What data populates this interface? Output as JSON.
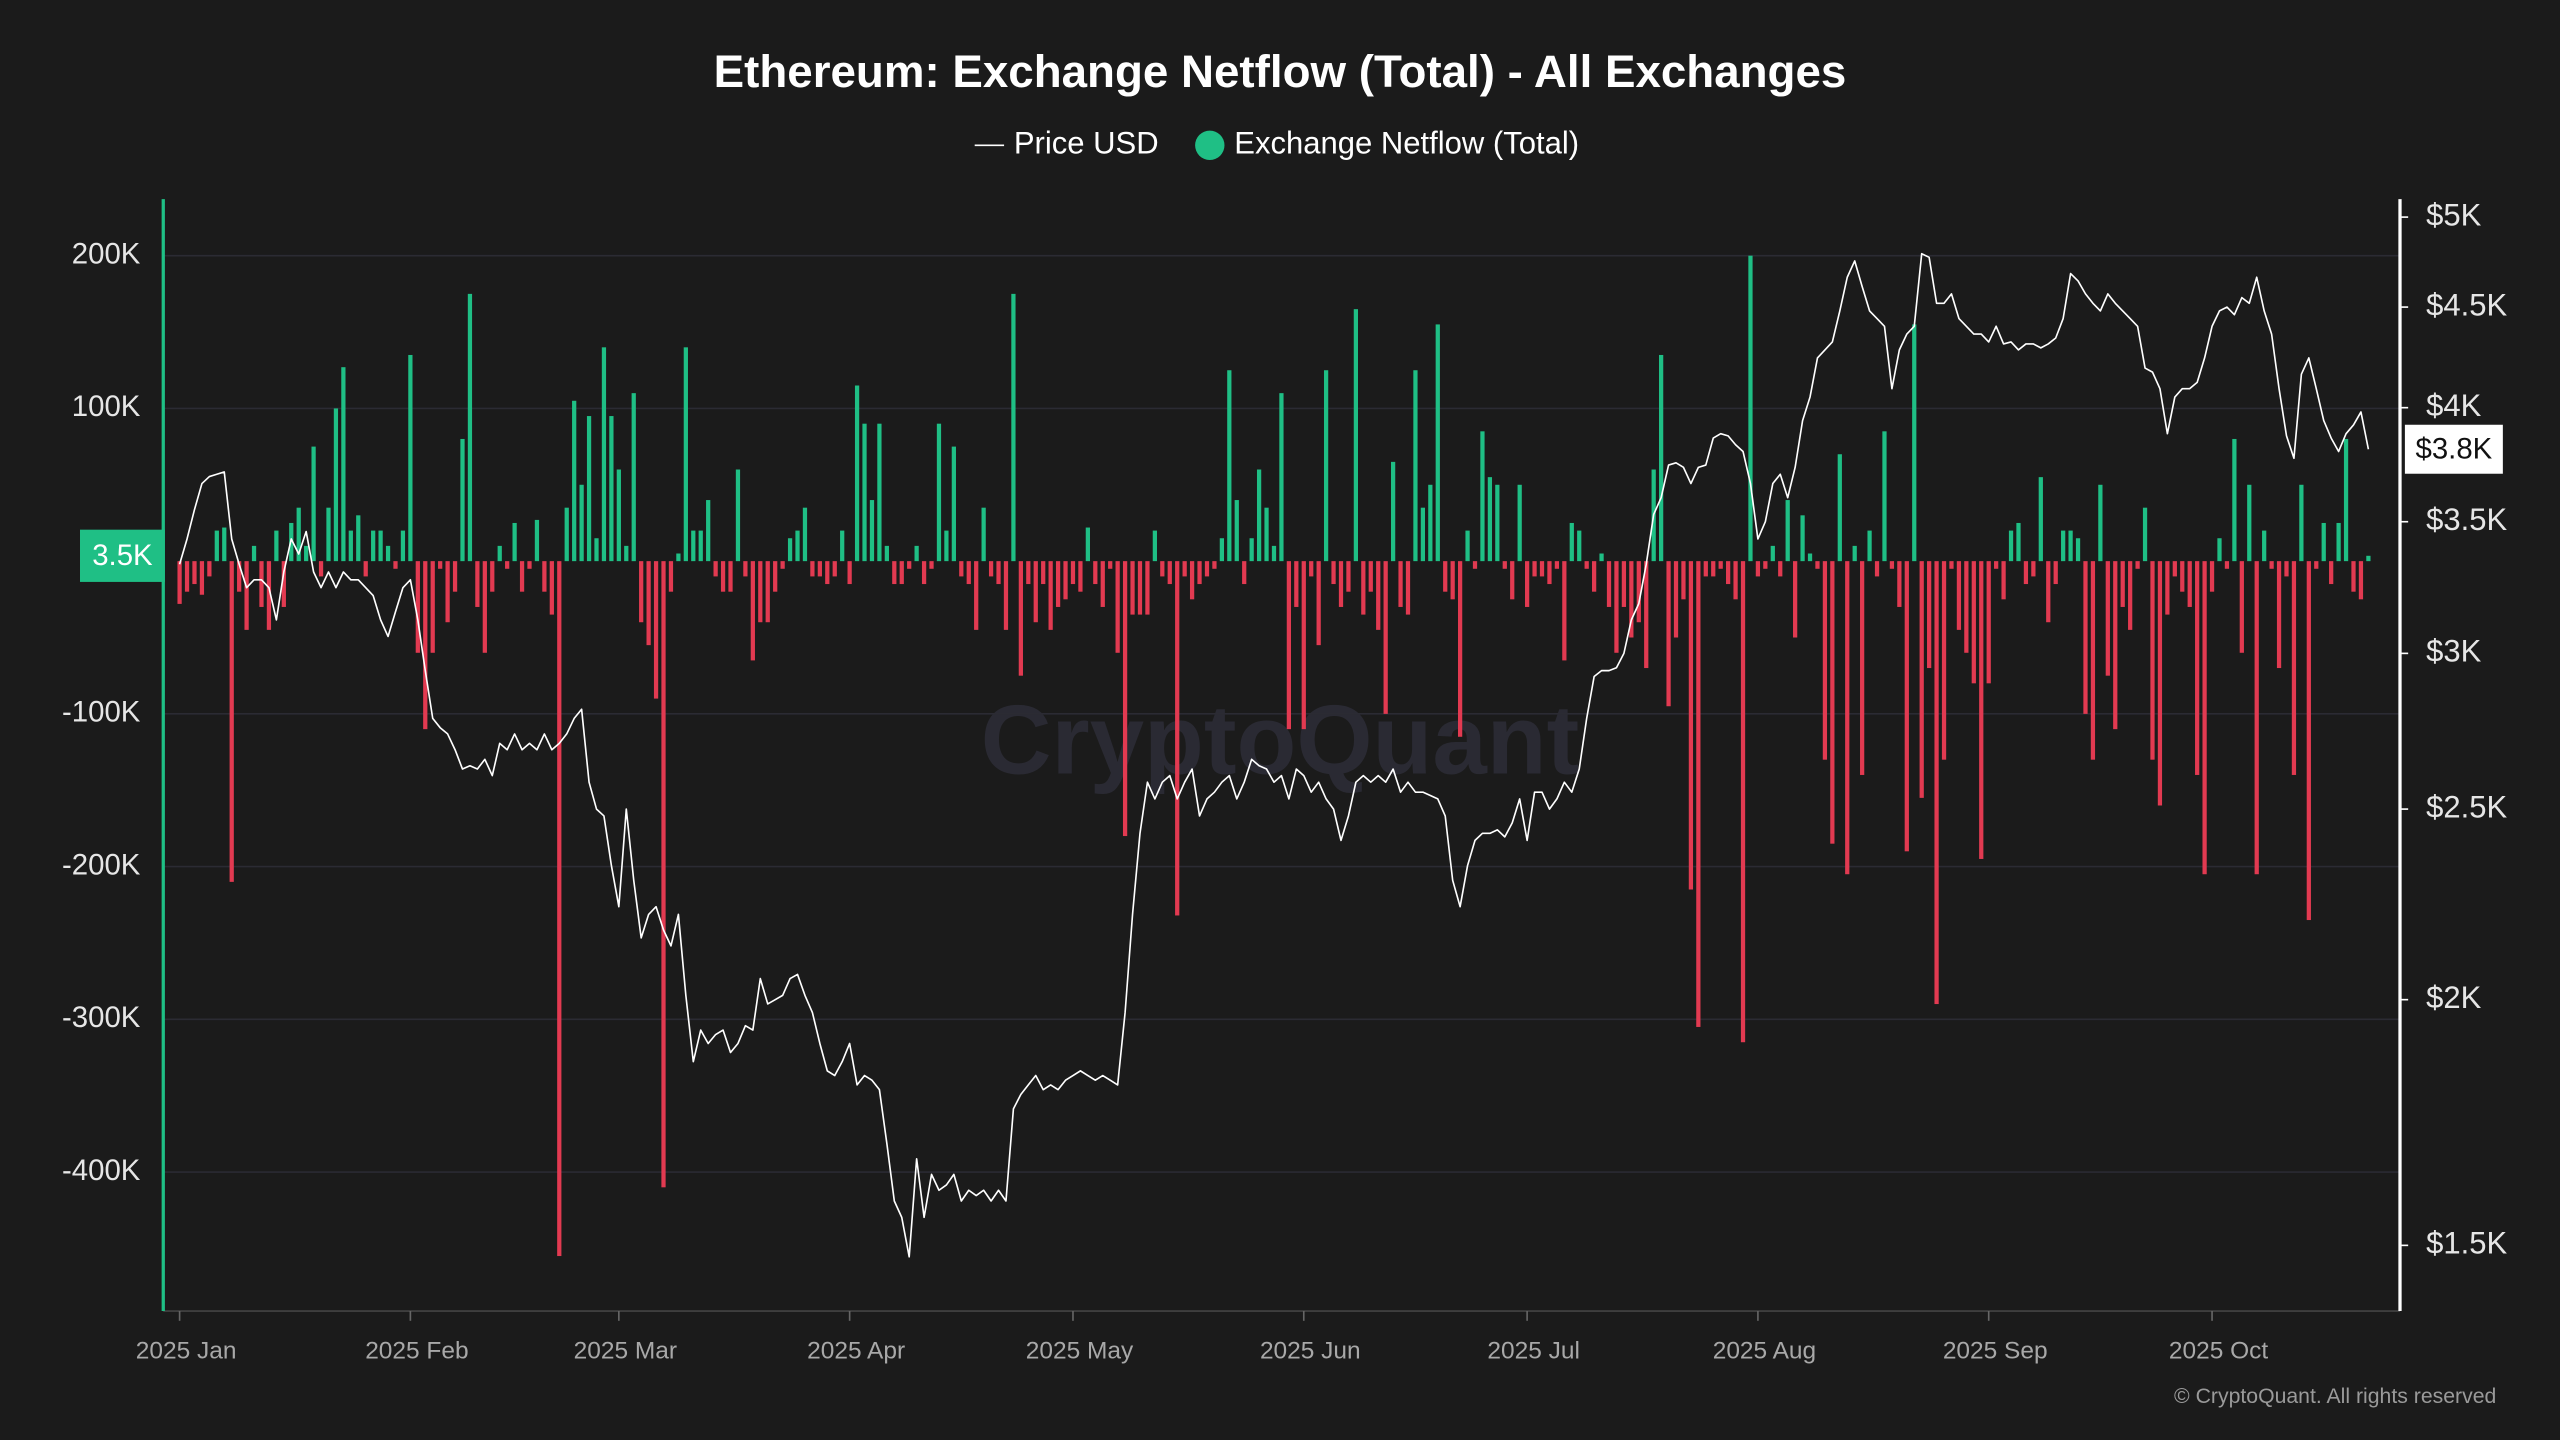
{
  "chart_data": {
    "type": "bar",
    "title": "Ethereum: Exchange Netflow (Total) - All Exchanges",
    "watermark": "CryptoQuant",
    "copyright": "© CryptoQuant. All rights reserved",
    "legend": "top",
    "grid": true,
    "categories": [
      "2025 Jan",
      null,
      null,
      null,
      null,
      null,
      null,
      null,
      null,
      null,
      null,
      null,
      null,
      null,
      null,
      null,
      null,
      null,
      null,
      null,
      null,
      null,
      null,
      null,
      null,
      null,
      null,
      null,
      null,
      null,
      null,
      "2025 Feb",
      null,
      null,
      null,
      null,
      null,
      null,
      null,
      null,
      null,
      null,
      null,
      null,
      null,
      null,
      null,
      null,
      null,
      null,
      null,
      null,
      null,
      null,
      null,
      null,
      null,
      null,
      null,
      "2025 Mar",
      null,
      null,
      null,
      null,
      null,
      null,
      null,
      null,
      null,
      null,
      null,
      null,
      null,
      null,
      null,
      null,
      null,
      null,
      null,
      null,
      null,
      null,
      null,
      null,
      null,
      null,
      null,
      null,
      null,
      null,
      "2025 Apr",
      null,
      null,
      null,
      null,
      null,
      null,
      null,
      null,
      null,
      null,
      null,
      null,
      null,
      null,
      null,
      null,
      null,
      null,
      null,
      null,
      null,
      null,
      null,
      null,
      null,
      null,
      null,
      null,
      null,
      "2025 May",
      null,
      null,
      null,
      null,
      null,
      null,
      null,
      null,
      null,
      null,
      null,
      null,
      null,
      null,
      null,
      null,
      null,
      null,
      null,
      null,
      null,
      null,
      null,
      null,
      null,
      null,
      null,
      null,
      null,
      null,
      "2025 Jun",
      null,
      null,
      null,
      null,
      null,
      null,
      null,
      null,
      null,
      null,
      null,
      null,
      null,
      null,
      null,
      null,
      null,
      null,
      null,
      null,
      null,
      null,
      null,
      null,
      null,
      null,
      null,
      null,
      null,
      "2025 Jul",
      null,
      null,
      null,
      null,
      null,
      null,
      null,
      null,
      null,
      null,
      null,
      null,
      null,
      null,
      null,
      null,
      null,
      null,
      null,
      null,
      null,
      null,
      null,
      null,
      null,
      null,
      null,
      null,
      null,
      null,
      "2025 Aug",
      null,
      null,
      null,
      null,
      null,
      null,
      null,
      null,
      null,
      null,
      null,
      null,
      null,
      null,
      null,
      null,
      null,
      null,
      null,
      null,
      null,
      null,
      null,
      null,
      null,
      null,
      null,
      null,
      null,
      null,
      "2025 Sep",
      null,
      null,
      null,
      null,
      null,
      null,
      null,
      null,
      null,
      null,
      null,
      null,
      null,
      null,
      null,
      null,
      null,
      null,
      null,
      null,
      null,
      null,
      null,
      null,
      null,
      null,
      null,
      null,
      null,
      "2025 Oct",
      null,
      null,
      null,
      null,
      null,
      null,
      null,
      null,
      null,
      null,
      null,
      null,
      null,
      null,
      null,
      null,
      null,
      null,
      null,
      null,
      null
    ],
    "ylim": [
      -491000,
      237000
    ],
    "yticks": [
      {
        "value": -400000,
        "label": "-400K"
      },
      {
        "value": -300000,
        "label": "-300K"
      },
      {
        "value": -200000,
        "label": "-200K"
      },
      {
        "value": -100000,
        "label": "-100K"
      },
      {
        "value": 100000,
        "label": "100K"
      },
      {
        "value": 200000,
        "label": "200K"
      }
    ],
    "y2lim": [
      1389,
      5106
    ],
    "y2log": true,
    "y2ticks": [
      {
        "value": 1500,
        "label": "$1.5K"
      },
      {
        "value": 2000,
        "label": "$2K"
      },
      {
        "value": 2500,
        "label": "$2.5K"
      },
      {
        "value": 3000,
        "label": "$3K"
      },
      {
        "value": 3500,
        "label": "$3.5K"
      },
      {
        "value": 4000,
        "label": "$4K"
      },
      {
        "value": 4500,
        "label": "$4.5K"
      },
      {
        "value": 5000,
        "label": "$5K"
      }
    ],
    "series": [
      {
        "name": "Price USD",
        "type": "line",
        "axis": "y2",
        "color": "#ffffff",
        "last_label": "$3.8K",
        "values": [
          3330,
          3430,
          3550,
          3660,
          3690,
          3700,
          3710,
          3430,
          3330,
          3240,
          3270,
          3270,
          3240,
          3120,
          3300,
          3430,
          3370,
          3460,
          3300,
          3240,
          3300,
          3240,
          3300,
          3270,
          3270,
          3240,
          3210,
          3120,
          3060,
          3150,
          3240,
          3270,
          3120,
          2940,
          2780,
          2750,
          2730,
          2680,
          2620,
          2630,
          2620,
          2650,
          2600,
          2700,
          2680,
          2730,
          2680,
          2700,
          2680,
          2730,
          2680,
          2700,
          2730,
          2780,
          2810,
          2580,
          2500,
          2480,
          2340,
          2230,
          2500,
          2300,
          2150,
          2210,
          2230,
          2170,
          2130,
          2210,
          2010,
          1860,
          1930,
          1900,
          1920,
          1930,
          1880,
          1900,
          1940,
          1930,
          2050,
          1990,
          2000,
          2010,
          2050,
          2060,
          2010,
          1970,
          1900,
          1840,
          1830,
          1860,
          1900,
          1810,
          1830,
          1820,
          1800,
          1690,
          1580,
          1550,
          1480,
          1660,
          1550,
          1630,
          1600,
          1610,
          1630,
          1580,
          1600,
          1590,
          1600,
          1580,
          1600,
          1580,
          1760,
          1790,
          1810,
          1830,
          1800,
          1810,
          1800,
          1820,
          1830,
          1840,
          1830,
          1820,
          1830,
          1820,
          1810,
          1970,
          2210,
          2430,
          2580,
          2530,
          2580,
          2600,
          2530,
          2580,
          2620,
          2480,
          2530,
          2550,
          2580,
          2600,
          2530,
          2580,
          2650,
          2630,
          2620,
          2580,
          2600,
          2530,
          2620,
          2600,
          2550,
          2580,
          2530,
          2500,
          2410,
          2480,
          2580,
          2600,
          2580,
          2600,
          2580,
          2620,
          2550,
          2580,
          2550,
          2550,
          2540,
          2530,
          2480,
          2300,
          2230,
          2340,
          2410,
          2430,
          2430,
          2440,
          2420,
          2460,
          2530,
          2410,
          2550,
          2550,
          2500,
          2530,
          2580,
          2550,
          2620,
          2780,
          2920,
          2940,
          2940,
          2950,
          3000,
          3120,
          3180,
          3330,
          3530,
          3600,
          3740,
          3750,
          3730,
          3660,
          3730,
          3740,
          3860,
          3880,
          3870,
          3830,
          3800,
          3660,
          3430,
          3500,
          3660,
          3700,
          3600,
          3730,
          3940,
          4050,
          4240,
          4280,
          4320,
          4480,
          4660,
          4750,
          4610,
          4480,
          4440,
          4400,
          4090,
          4280,
          4360,
          4400,
          4790,
          4770,
          4520,
          4520,
          4570,
          4440,
          4400,
          4360,
          4360,
          4320,
          4400,
          4310,
          4320,
          4280,
          4310,
          4310,
          4290,
          4310,
          4340,
          4440,
          4680,
          4640,
          4570,
          4520,
          4480,
          4570,
          4520,
          4480,
          4440,
          4400,
          4190,
          4170,
          4090,
          3880,
          4050,
          4090,
          4090,
          4120,
          4240,
          4400,
          4480,
          4500,
          4460,
          4550,
          4520,
          4660,
          4480,
          4360,
          4090,
          3870,
          3770,
          4160,
          4240,
          4090,
          3940,
          3860,
          3800,
          3880,
          3920,
          3980,
          3810
        ]
      },
      {
        "name": "Exchange Netflow (Total)",
        "type": "bar",
        "axis": "y",
        "color": "#1fbf85",
        "negative_color": "#e23a51",
        "last_label": "3.5K",
        "values": [
          -28000,
          -20000,
          -15000,
          -22000,
          -10000,
          20000,
          22000,
          -210000,
          -20000,
          -45000,
          10000,
          -30000,
          -45000,
          20000,
          -30000,
          25000,
          35000,
          10000,
          75000,
          -10000,
          35000,
          100000,
          127000,
          20000,
          30000,
          -10000,
          20000,
          20000,
          10000,
          -5000,
          20000,
          135000,
          -60000,
          -110000,
          -60000,
          -5000,
          -40000,
          -20000,
          80000,
          175000,
          -30000,
          -60000,
          -20000,
          10000,
          -5000,
          25000,
          -20000,
          -5000,
          27000,
          -20000,
          -35000,
          -455000,
          35000,
          105000,
          50000,
          95000,
          15000,
          140000,
          95000,
          60000,
          10000,
          110000,
          -40000,
          -55000,
          -90000,
          -410000,
          -20000,
          5000,
          140000,
          20000,
          20000,
          40000,
          -10000,
          -20000,
          -20000,
          60000,
          -10000,
          -65000,
          -40000,
          -40000,
          -20000,
          -5000,
          15000,
          20000,
          35000,
          -10000,
          -10000,
          -15000,
          -10000,
          20000,
          -15000,
          115000,
          90000,
          40000,
          90000,
          10000,
          -15000,
          -15000,
          -5000,
          10000,
          -15000,
          -5000,
          90000,
          20000,
          75000,
          -10000,
          -15000,
          -45000,
          35000,
          -10000,
          -15000,
          -45000,
          175000,
          -75000,
          -15000,
          -40000,
          -15000,
          -45000,
          -30000,
          -25000,
          -15000,
          -20000,
          22000,
          -15000,
          -30000,
          -5000,
          -60000,
          -180000,
          -35000,
          -35000,
          -35000,
          20000,
          -10000,
          -15000,
          -232000,
          -10000,
          -25000,
          -15000,
          -10000,
          -5000,
          15000,
          125000,
          40000,
          -15000,
          15000,
          60000,
          35000,
          10000,
          110000,
          -110000,
          -30000,
          -110000,
          -10000,
          -55000,
          125000,
          -15000,
          -30000,
          -20000,
          165000,
          -35000,
          -20000,
          -45000,
          -100000,
          65000,
          -30000,
          -35000,
          125000,
          35000,
          50000,
          155000,
          -20000,
          -25000,
          -115000,
          20000,
          -5000,
          85000,
          55000,
          50000,
          -5000,
          -25000,
          50000,
          -30000,
          -10000,
          -10000,
          -15000,
          -5000,
          -65000,
          25000,
          20000,
          -5000,
          -20000,
          5000,
          -30000,
          -60000,
          -30000,
          -50000,
          -40000,
          -70000,
          60000,
          135000,
          -95000,
          -50000,
          -25000,
          -215000,
          -305000,
          -10000,
          -10000,
          -5000,
          -15000,
          -25000,
          -315000,
          200000,
          -10000,
          -5000,
          10000,
          -10000,
          40000,
          -50000,
          30000,
          5000,
          -5000,
          -130000,
          -185000,
          70000,
          -205000,
          10000,
          -140000,
          20000,
          -10000,
          85000,
          -5000,
          -30000,
          -190000,
          155000,
          -155000,
          -70000,
          -290000,
          -130000,
          -5000,
          -45000,
          -60000,
          -80000,
          -195000,
          -80000,
          -5000,
          -25000,
          20000,
          25000,
          -15000,
          -10000,
          55000,
          -40000,
          -15000,
          20000,
          20000,
          15000,
          -100000,
          -130000,
          50000,
          -75000,
          -110000,
          -30000,
          -45000,
          -5000,
          35000,
          -130000,
          -160000,
          -35000,
          -10000,
          -20000,
          -30000,
          -140000,
          -205000,
          -20000,
          15000,
          -5000,
          80000,
          -60000,
          50000,
          -205000,
          20000,
          -5000,
          -70000,
          -10000,
          -140000,
          50000,
          -235000,
          -5000,
          25000,
          -15000,
          25000,
          80000,
          -20000,
          -25000,
          3500
        ]
      }
    ]
  }
}
